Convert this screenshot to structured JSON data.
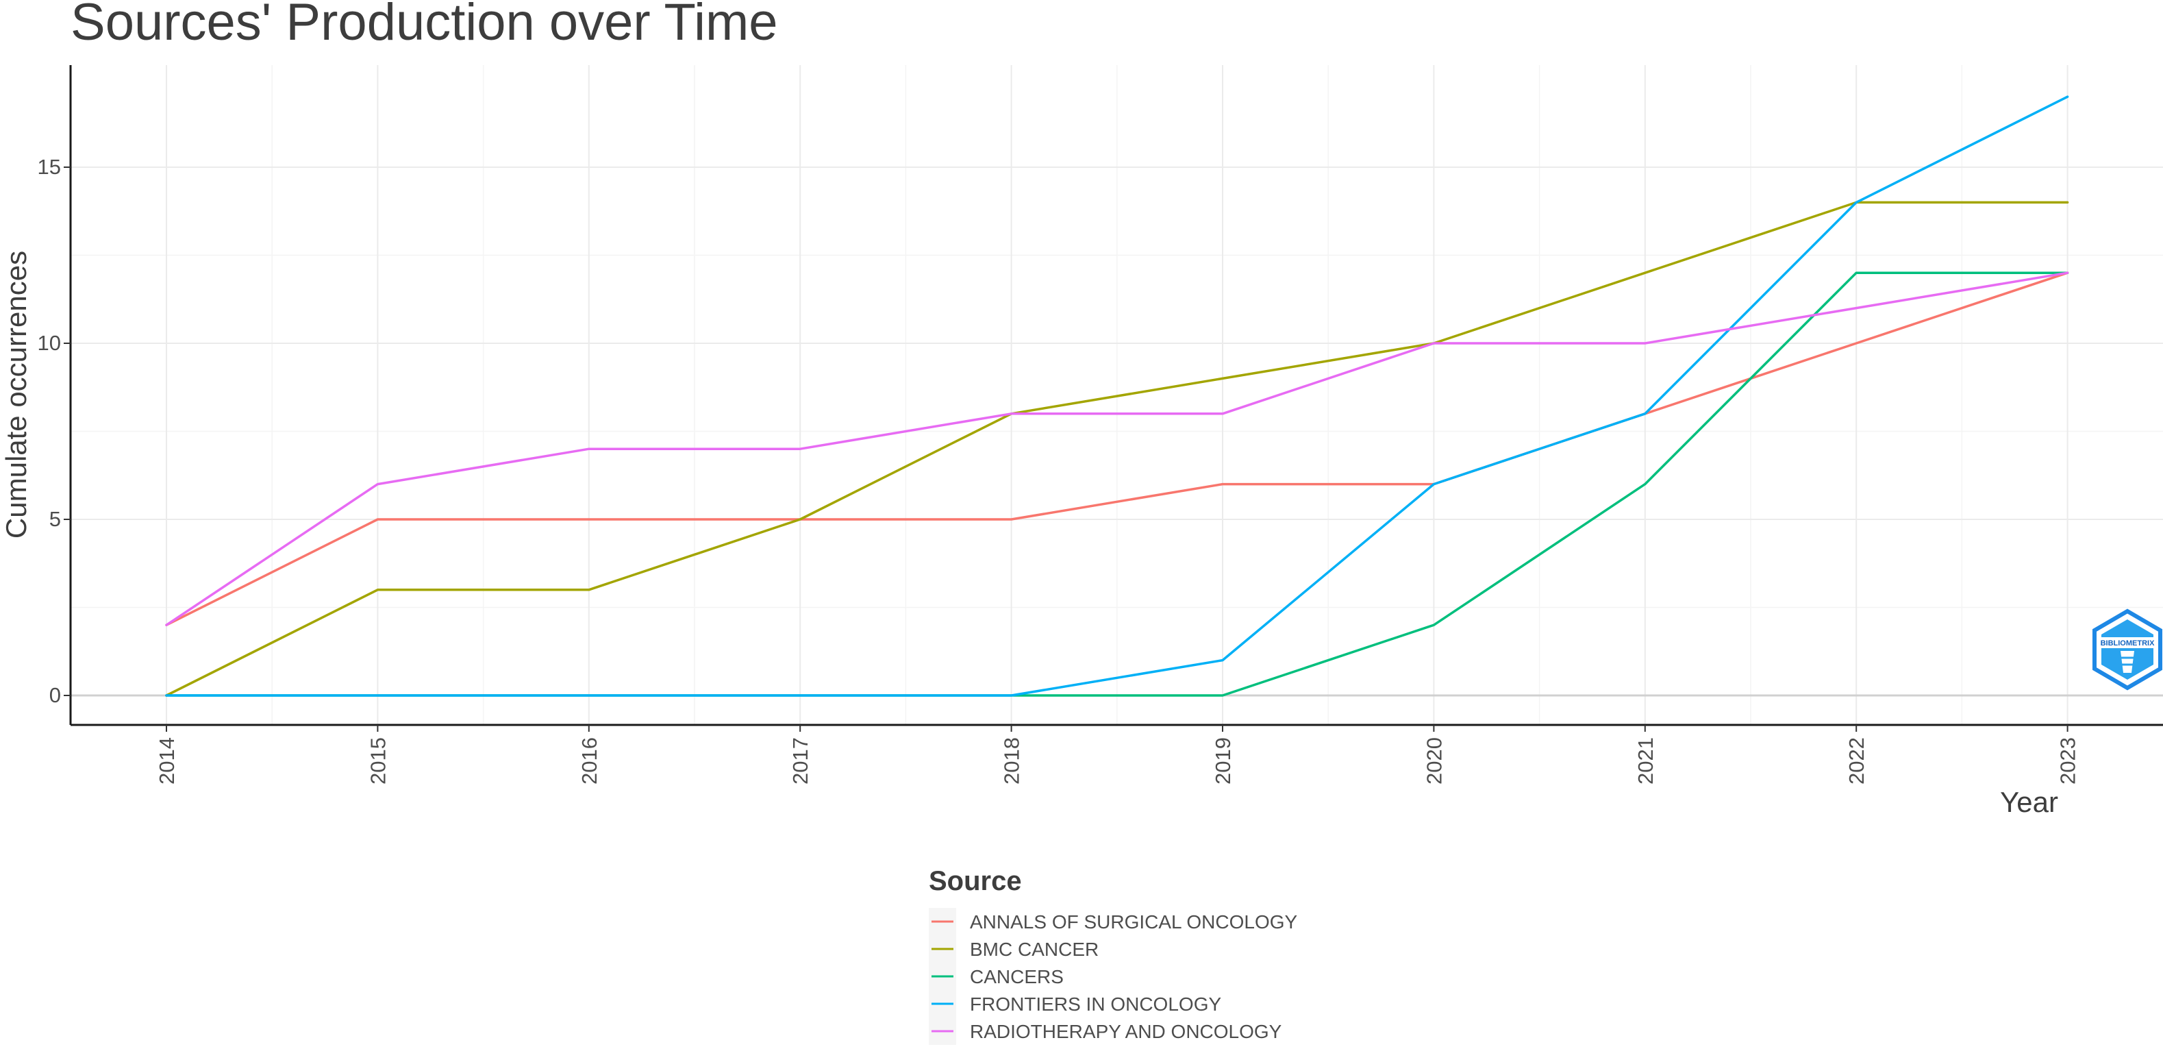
{
  "chart_data": {
    "type": "line",
    "title": "Sources' Production over Time",
    "xlabel": "Year",
    "ylabel": "Cumulate occurrences",
    "x": [
      "2014",
      "2015",
      "2016",
      "2017",
      "2018",
      "2019",
      "2020",
      "2021",
      "2022",
      "2023"
    ],
    "y_ticks": [
      "0",
      "5",
      "10",
      "15"
    ],
    "ylim": [
      -0.8,
      17.8
    ],
    "grid": true,
    "legend_title": "Source",
    "legend_position": "bottom",
    "series": [
      {
        "name": "ANNALS OF SURGICAL ONCOLOGY",
        "color": "#F8766D",
        "values": [
          2,
          5,
          5,
          5,
          5,
          6,
          6,
          8,
          10,
          12
        ]
      },
      {
        "name": "BMC CANCER",
        "color": "#A3A500",
        "values": [
          0,
          3,
          3,
          5,
          8,
          9,
          10,
          12,
          14,
          14
        ]
      },
      {
        "name": "CANCERS",
        "color": "#00BF7D",
        "values": [
          0,
          0,
          0,
          0,
          0,
          0,
          2,
          6,
          12,
          12
        ]
      },
      {
        "name": "FRONTIERS IN ONCOLOGY",
        "color": "#00B0F6",
        "values": [
          0,
          0,
          0,
          0,
          0,
          1,
          6,
          8,
          14,
          17
        ]
      },
      {
        "name": "RADIOTHERAPY AND ONCOLOGY",
        "color": "#E76BF3",
        "values": [
          2,
          6,
          7,
          7,
          8,
          8,
          10,
          10,
          11,
          12
        ]
      }
    ]
  },
  "watermark": {
    "text": "BIBLIOMETRIX",
    "icon": "bibliometrix-hexagon-logo",
    "color": "#1e88e5"
  }
}
